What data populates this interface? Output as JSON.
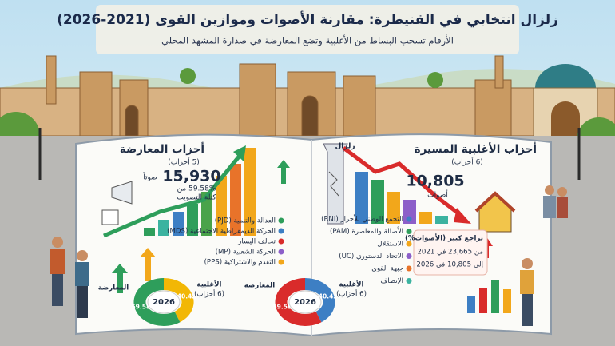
{
  "header": {
    "title": "زلزال انتخابي في القنيطرة: مقارنة الأصوات وموازين القوى (2021-2026)",
    "subtitle": "الأرقام تسحب البساط من الأغلبية وتضع المعارضة في صدارة المشهد المحلي"
  },
  "opposition_panel": {
    "heading": "أحزاب المعارضة",
    "count": "(5 أحزاب)",
    "total": "15,930",
    "total_unit": "صوتاً",
    "share": "59.58% من",
    "share_note": "كتلة التصويت",
    "parties": [
      {
        "name": "العدالة والتنمية (PJD)",
        "color": "#2e9e5b"
      },
      {
        "name": "الحركة الديمقراطية الاجتماعية (MDS)",
        "color": "#3d7fc4"
      },
      {
        "name": "تحالف اليسار",
        "color": "#d92b2b"
      },
      {
        "name": "الحركة الشعبية (MP)",
        "color": "#8c5fc9"
      },
      {
        "name": "التقدم والاشتراكية (PPS)",
        "color": "#f2a71b"
      }
    ]
  },
  "majority_panel": {
    "tag": "زلزال",
    "heading": "أحزاب الأغلبية المسيرة",
    "count": "(6 أحزاب)",
    "total": "10,805",
    "total_unit": "أصوات",
    "parties": [
      {
        "name": "التجمع الوطني للأحرار (RNI)",
        "color": "#3d7fc4"
      },
      {
        "name": "الأصالة والمعاصرة (PAM)",
        "color": "#2e9e5b"
      },
      {
        "name": "الاستقلال",
        "color": "#f2a71b"
      },
      {
        "name": "الاتحاد الدستوري (UC)",
        "color": "#8c5fc9"
      },
      {
        "name": "جبهة القوى",
        "color": "#e8732a"
      },
      {
        "name": "الإنصاف",
        "color": "#3bb3a0"
      }
    ],
    "callout": {
      "title": "تراجع كبير (الأصوات%)",
      "from": "من 23,665 في 2021",
      "to": "إلى 10,805 في 2026"
    }
  },
  "donuts": [
    {
      "center": "2026",
      "segments": [
        {
          "label": "الأغلبية",
          "sub": "(6 أحزاب)",
          "value": 40.42,
          "color": "#f2b705"
        },
        {
          "label": "المعارضة",
          "value": 59.58,
          "color": "#2e9e5b"
        }
      ]
    },
    {
      "center": "2026",
      "segments": [
        {
          "label": "الأغلبية",
          "sub": "(6 أحزاب)",
          "value": 40.42,
          "color": "#3d7fc4"
        },
        {
          "label": "المعارضة",
          "value": 59.58,
          "color": "#d92b2b"
        }
      ]
    }
  ]
}
